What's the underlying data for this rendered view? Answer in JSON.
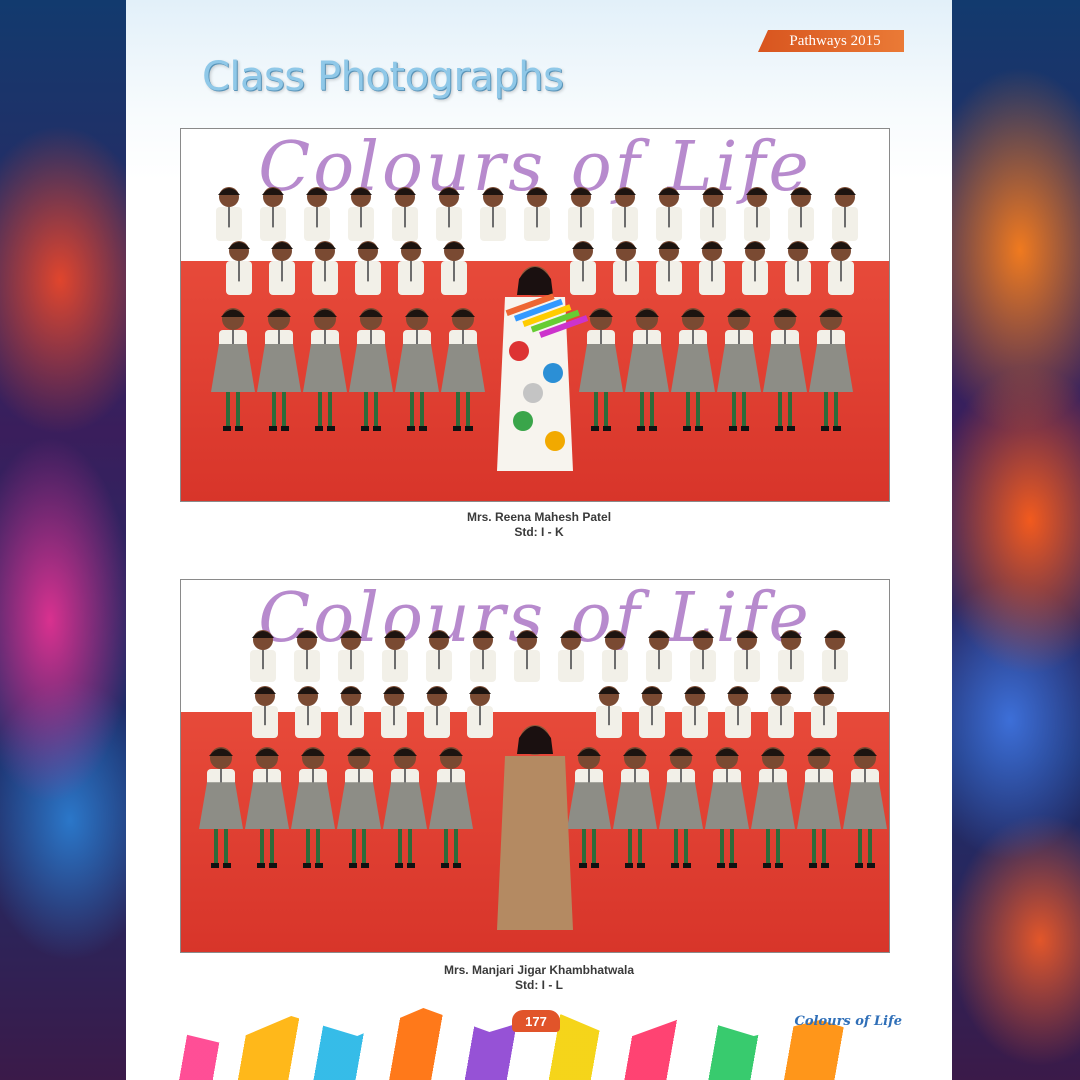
{
  "header": {
    "ribbon_text": "Pathways 2015",
    "title": "Class Photographs"
  },
  "photos": [
    {
      "banner_text": "Colours of Life",
      "teacher": "Mrs. Reena Mahesh Patel",
      "standard": "Std: I - K"
    },
    {
      "banner_text": "Colours of Life",
      "teacher": "Mrs. Manjari Jigar Khambhatwala",
      "standard": "Std: I - L"
    }
  ],
  "footer": {
    "page_number": "177",
    "brand": "Colours of Life"
  },
  "colors": {
    "title": "#8fc8e8",
    "ribbon": "#e1612a",
    "stage": "#d8352a",
    "uniform_shirt": "#f2f0e8",
    "uniform_skirt": "#8d8d86"
  }
}
